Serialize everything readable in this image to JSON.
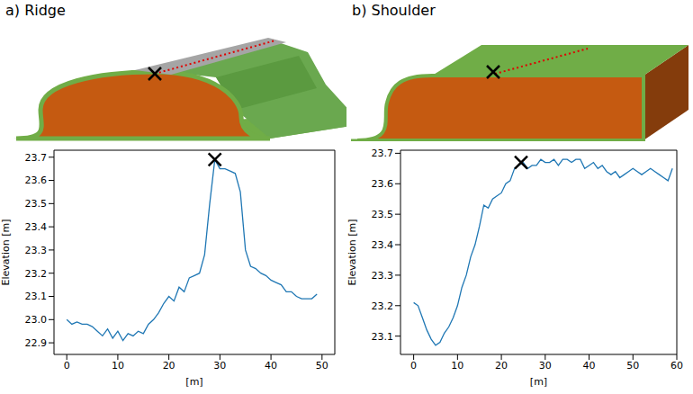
{
  "chart_data": [
    {
      "type": "line",
      "title": "a) Ridge",
      "x_label": "[m]",
      "y_label": "Elevation [m]",
      "color": "#1f77b4",
      "x": [
        0,
        1,
        2,
        3,
        4,
        5,
        6,
        7,
        8,
        9,
        10,
        11,
        12,
        13,
        14,
        15,
        16,
        17,
        18,
        19,
        20,
        21,
        22,
        23,
        24,
        25,
        26,
        27,
        28,
        29,
        30,
        31,
        32,
        33,
        34,
        35,
        36,
        37,
        38,
        39,
        40,
        41,
        42,
        43,
        44,
        45,
        46,
        47,
        48,
        49
      ],
      "values": [
        23.0,
        22.98,
        22.99,
        22.98,
        22.98,
        22.97,
        22.95,
        22.93,
        22.96,
        22.92,
        22.95,
        22.91,
        22.94,
        22.93,
        22.95,
        22.94,
        22.98,
        23.0,
        23.03,
        23.07,
        23.1,
        23.08,
        23.14,
        23.12,
        23.18,
        23.19,
        23.2,
        23.28,
        23.5,
        23.69,
        23.65,
        23.65,
        23.64,
        23.63,
        23.55,
        23.3,
        23.23,
        23.22,
        23.2,
        23.19,
        23.17,
        23.16,
        23.15,
        23.12,
        23.12,
        23.1,
        23.09,
        23.09,
        23.09,
        23.11
      ],
      "xlim": [
        -2.5,
        52.5
      ],
      "ylim": [
        22.85,
        23.73
      ],
      "xticks": [
        0,
        10,
        20,
        30,
        40,
        50
      ],
      "yticks": [
        22.9,
        {
          "value": 23,
          "label": "23.0"
        },
        23.1,
        23.2,
        23.3,
        23.4,
        23.5,
        23.6,
        23.7
      ],
      "marked_point": {
        "x": 29,
        "y": 23.69
      },
      "marker": "x",
      "grid": false
    },
    {
      "type": "line",
      "title": "b) Shoulder",
      "x_label": "[m]",
      "y_label": "Elevation [m]",
      "color": "#1f77b4",
      "x": [
        0,
        1,
        2,
        3,
        4,
        5,
        6,
        7,
        8,
        9,
        10,
        11,
        12,
        13,
        14,
        15,
        16,
        17,
        18,
        19,
        20,
        21,
        22,
        23,
        24,
        25,
        26,
        27,
        28,
        29,
        30,
        31,
        32,
        33,
        34,
        35,
        36,
        37,
        38,
        39,
        40,
        41,
        42,
        43,
        44,
        45,
        46,
        47,
        48,
        49,
        50,
        51,
        52,
        53,
        54,
        55,
        56,
        57,
        58,
        59
      ],
      "values": [
        23.21,
        23.2,
        23.16,
        23.12,
        23.09,
        23.07,
        23.08,
        23.11,
        23.13,
        23.16,
        23.2,
        23.26,
        23.3,
        23.36,
        23.4,
        23.46,
        23.53,
        23.52,
        23.55,
        23.56,
        23.57,
        23.6,
        23.61,
        23.65,
        23.66,
        23.67,
        23.65,
        23.66,
        23.66,
        23.68,
        23.67,
        23.67,
        23.68,
        23.66,
        23.68,
        23.68,
        23.67,
        23.68,
        23.68,
        23.65,
        23.66,
        23.67,
        23.65,
        23.66,
        23.64,
        23.63,
        23.64,
        23.62,
        23.63,
        23.64,
        23.65,
        23.64,
        23.63,
        23.64,
        23.65,
        23.64,
        23.63,
        23.62,
        23.61,
        23.65
      ],
      "xlim": [
        -3,
        60
      ],
      "ylim": [
        23.04,
        23.71
      ],
      "xticks": [
        0,
        10,
        20,
        30,
        40,
        50,
        60
      ],
      "yticks": [
        23.1,
        23.2,
        23.3,
        23.4,
        23.5,
        23.6,
        23.7
      ],
      "marked_point": {
        "x": 24.5,
        "y": 23.67
      },
      "marker": "x",
      "grid": false
    }
  ]
}
